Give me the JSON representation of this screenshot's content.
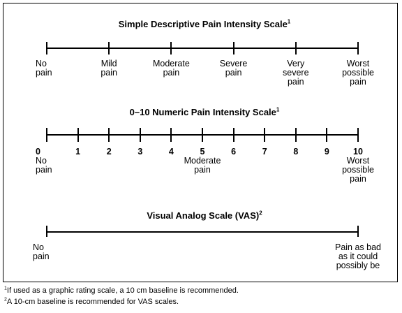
{
  "descriptive": {
    "title": "Simple Descriptive Pain Intensity Scale",
    "title_sup": "1",
    "labels": [
      "No\npain",
      "Mild\npain",
      "Moderate\npain",
      "Severe\npain",
      "Very\nsevere\npain",
      "Worst\npossible\npain"
    ]
  },
  "numeric": {
    "title": "0–10 Numeric Pain Intensity Scale",
    "title_sup": "1",
    "numbers": [
      "0",
      "1",
      "2",
      "3",
      "4",
      "5",
      "6",
      "7",
      "8",
      "9",
      "10"
    ],
    "anchors": {
      "0": "No\npain",
      "5": "Moderate\npain",
      "10": "Worst\npossible\npain"
    }
  },
  "vas": {
    "title": "Visual Analog Scale (VAS)",
    "title_sup": "2",
    "left_label": "No\npain",
    "right_label": "Pain as bad\nas it could\npossibly be"
  },
  "footnotes": [
    {
      "sup": "1",
      "text": "If used as a graphic rating scale, a 10 cm baseline is recommended."
    },
    {
      "sup": "2",
      "text": "A 10-cm baseline is recommended for VAS scales."
    }
  ]
}
